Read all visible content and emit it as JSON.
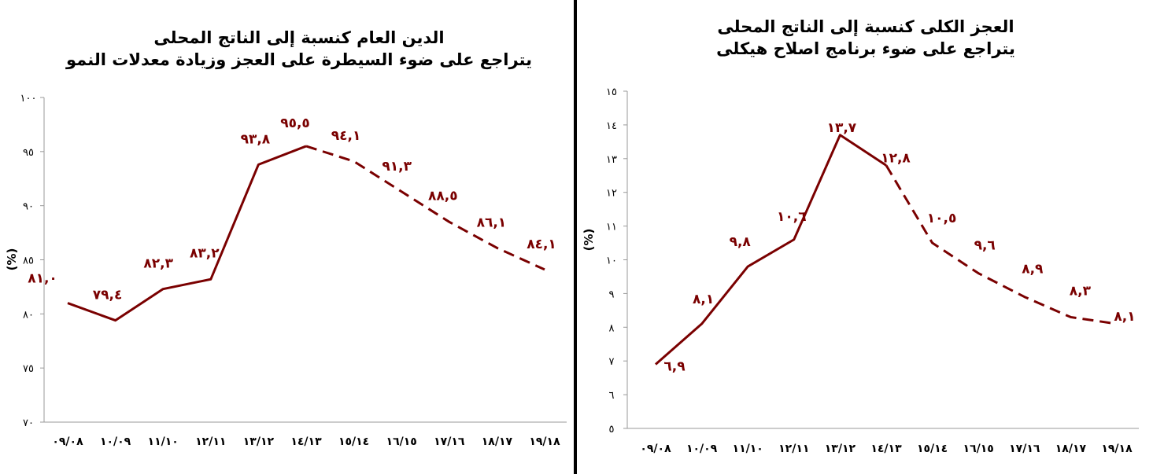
{
  "charts": [
    {
      "id": "debt",
      "title_line1": "الدين العام كنسبة إلى الناتج المحلى",
      "title_line2": "يتراجع على ضوء السيطرة على العجز وزيادة معدلات النمو"
    },
    {
      "id": "deficit",
      "title_line1": "العجز الكلى كنسبة إلى الناتج المحلى",
      "title_line2": "يتراجع على ضوء برنامج اصلاح هيكلى"
    }
  ],
  "chart_data": [
    {
      "type": "line",
      "title": "الدين العام كنسبة إلى الناتج المحلى يتراجع على ضوء السيطرة على العجز وزيادة معدلات النمو",
      "ylabel": "(%)",
      "ylim": [
        70,
        100
      ],
      "y_ticks": [
        {
          "value": 100,
          "label": "١٠٠"
        },
        {
          "value": 95,
          "label": "٩٥"
        },
        {
          "value": 90,
          "label": "٩٠"
        },
        {
          "value": 85,
          "label": "٨٥"
        },
        {
          "value": 80,
          "label": "٨٠"
        },
        {
          "value": 75,
          "label": "٧٥"
        },
        {
          "value": 70,
          "label": "٧٠"
        }
      ],
      "categories": [
        "٠٩/٠٨",
        "١٠/٠٩",
        "١١/١٠",
        "١٢/١١",
        "١٣/١٢",
        "١٤/١٣",
        "١٥/١٤",
        "١٦/١٥",
        "١٧/١٦",
        "١٨/١٧",
        "١٩/١٨"
      ],
      "values": [
        81.0,
        79.4,
        82.3,
        83.2,
        93.8,
        95.5,
        94.1,
        91.3,
        88.5,
        86.1,
        84.1
      ],
      "data_labels": [
        "٨١,٠",
        "٧٩,٤",
        "٨٢,٣",
        "٨٣,٢",
        "٩٣,٨",
        "٩٥,٥",
        "٩٤,١",
        "٩١,٣",
        "٨٨,٥",
        "٨٦,١",
        "٨٤,١"
      ],
      "actual_until_index": 5,
      "color": "#7a0000"
    },
    {
      "type": "line",
      "title": "العجز الكلى كنسبة إلى الناتج المحلى يتراجع على ضوء برنامج اصلاح هيكلى",
      "ylabel": "(%)",
      "ylim": [
        5,
        15
      ],
      "y_ticks": [
        {
          "value": 15,
          "label": "١٥"
        },
        {
          "value": 14,
          "label": "١٤"
        },
        {
          "value": 13,
          "label": "١٣"
        },
        {
          "value": 12,
          "label": "١٢"
        },
        {
          "value": 11,
          "label": "١١"
        },
        {
          "value": 10,
          "label": "١٠"
        },
        {
          "value": 9,
          "label": "٩"
        },
        {
          "value": 8,
          "label": "٨"
        },
        {
          "value": 7,
          "label": "٧"
        },
        {
          "value": 6,
          "label": "٦"
        },
        {
          "value": 5,
          "label": "٥"
        }
      ],
      "categories": [
        "٠٩/٠٨",
        "١٠/٠٩",
        "١١/١٠",
        "١٢/١١",
        "١٣/١٢",
        "١٤/١٣",
        "١٥/١٤",
        "١٦/١٥",
        "١٧/١٦",
        "١٨/١٧",
        "١٩/١٨"
      ],
      "values": [
        6.9,
        8.1,
        9.8,
        10.6,
        13.7,
        12.8,
        10.5,
        9.6,
        8.9,
        8.3,
        8.1
      ],
      "data_labels": [
        "٦,٩",
        "٨,١",
        "٩,٨",
        "١٠,٦",
        "١٣,٧",
        "١٢,٨",
        "١٠,٥",
        "٩,٦",
        "٨,٩",
        "٨,٣",
        "٨,١"
      ],
      "actual_until_index": 5,
      "color": "#7a0000"
    }
  ]
}
